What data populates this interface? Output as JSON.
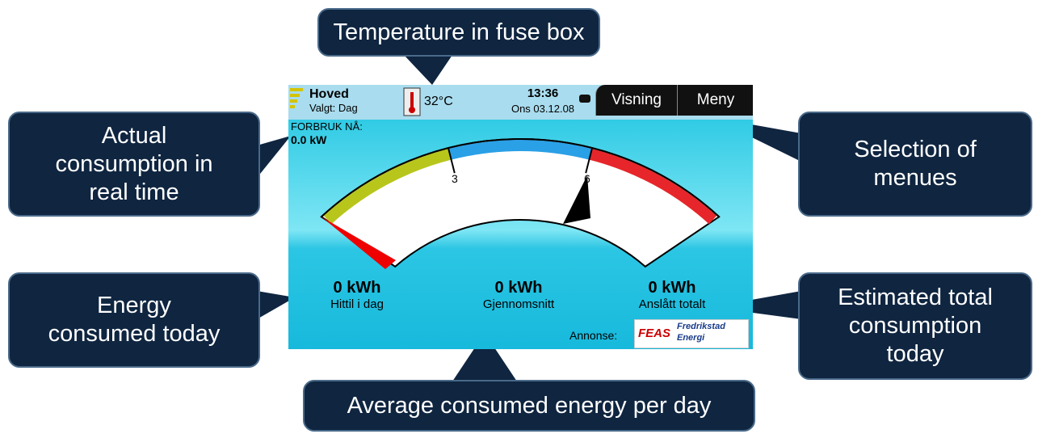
{
  "callouts": [
    {
      "lines": [
        "Temperature in fuse box"
      ]
    },
    {
      "lines": [
        "Actual",
        "consumption in",
        "real time"
      ]
    },
    {
      "lines": [
        "Selection of",
        "menues"
      ]
    },
    {
      "lines": [
        "Energy",
        "consumed today"
      ]
    },
    {
      "lines": [
        "Estimated total",
        "consumption",
        "today"
      ]
    },
    {
      "lines": [
        "Average consumed energy per day"
      ]
    }
  ],
  "screen": {
    "header": {
      "title": "Hoved",
      "subtitle": "Valgt: Dag",
      "temperature": "32°C",
      "time": "13:36",
      "date": "Ons 03.12.08",
      "buttons": [
        "Visning",
        "Meny"
      ]
    },
    "now_label": "FORBRUK NÅ:",
    "now_value": "0.0 kW",
    "gauge_labels": [
      "3",
      "6"
    ],
    "stats": [
      {
        "value": "0 kWh",
        "label": "Hittil i dag"
      },
      {
        "value": "0 kWh",
        "label": "Gjennomsnitt"
      },
      {
        "value": "0 kWh",
        "label": "Anslått totalt"
      }
    ],
    "ad": {
      "label": "Annonse:",
      "logo": "FEAS",
      "name": [
        "Fredrikstad",
        "Energi"
      ]
    }
  }
}
